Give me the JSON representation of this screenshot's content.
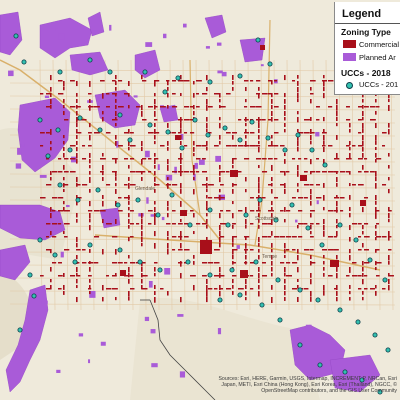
{
  "legend": {
    "title": "Legend",
    "zoning_title": "Zoning Type",
    "zoning_items": [
      {
        "label": "Commercial",
        "color": "#a80f1a"
      },
      {
        "label": "Planned Ar",
        "color": "#a95bd8"
      }
    ],
    "ucc_title": "UCCs - 2018",
    "ucc_item": {
      "label": "UCCs - 201",
      "color": "#33c1b0"
    }
  },
  "attribution": [
    "Sources: Esri, HERE, Garmin, USGS, Intermap, INCREMENT P, NRCan, Esri",
    "Japan, METI, Esri China (Hong Kong), Esri Korea, Esri (Thailand), NGCC, ©",
    "OpenStreetMap contributors, and the GIS User Community"
  ],
  "place_labels": [
    "Glendale",
    "Scottsdale",
    "Tempe"
  ],
  "colors": {
    "background": "#efeadb",
    "commercial": "#a80f1a",
    "planned": "#a95bd8",
    "ucc": "#33c1b0",
    "ucc_outline": "#0e3f4a"
  }
}
